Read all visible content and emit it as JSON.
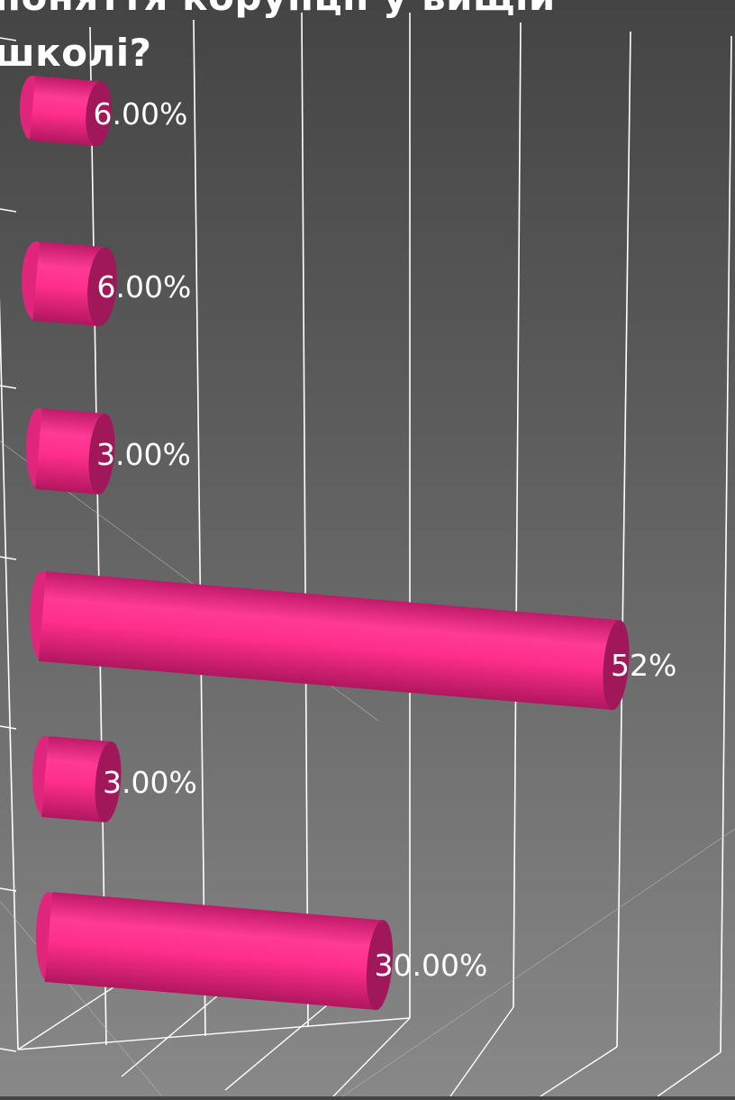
{
  "chart_data": {
    "type": "bar",
    "orientation": "horizontal",
    "style": "3d-cylinder",
    "title": "поняття корупції у вищій\nшколі?",
    "categories": [
      "",
      "",
      "",
      "",
      "",
      ""
    ],
    "values": [
      6,
      6,
      3,
      52,
      3,
      30
    ],
    "value_labels": [
      "6.00%",
      "6.00%",
      "3.00%",
      "52%",
      "3.00%",
      "30.00%"
    ],
    "bar_color": "#ff2e8c",
    "grid": true,
    "legend": "none"
  },
  "colors": {
    "bar": "#ff2e8c",
    "bar_dark": "#a0175a",
    "grid": "#ffffff",
    "label": "#ffffff"
  }
}
